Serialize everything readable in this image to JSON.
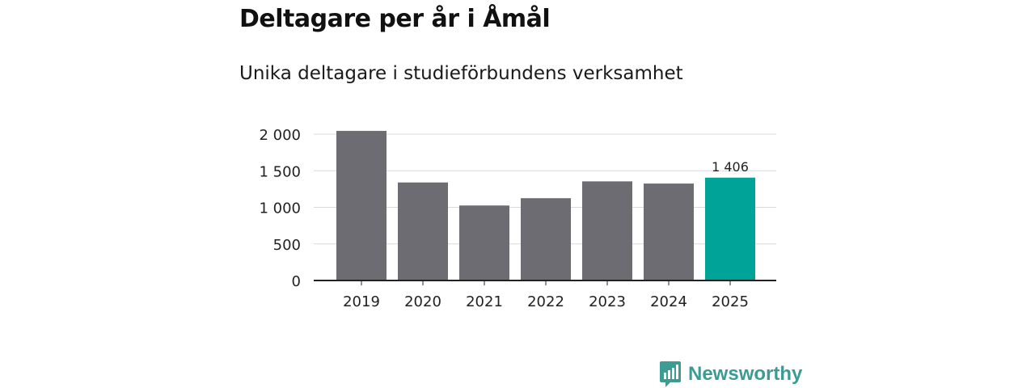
{
  "title": "Deltagare per år i Åmål",
  "subtitle": "Unika deltagare i studieförbundens verksamhet",
  "brand": {
    "name": "Newsworthy",
    "color": "#3d9b93",
    "icon": "bar-chart-speech-bubble-icon"
  },
  "colors": {
    "bar_default": "#6d6c72",
    "bar_highlight": "#00a397",
    "gridline": "#d9d9d9",
    "axis": "#222222"
  },
  "chart_data": {
    "type": "bar",
    "categories": [
      "2019",
      "2020",
      "2021",
      "2022",
      "2023",
      "2024",
      "2025"
    ],
    "values": [
      2045,
      1340,
      1025,
      1125,
      1355,
      1325,
      1406
    ],
    "highlight_index": 6,
    "data_labels": [
      {
        "index": 6,
        "text": "1 406"
      }
    ],
    "ylim": [
      0,
      2000
    ],
    "yticks": [
      0,
      500,
      1000,
      1500,
      2000
    ],
    "ytick_labels": [
      "0",
      "500",
      "1 000",
      "1 500",
      "2 000"
    ],
    "grid": true,
    "legend": "none",
    "xlabel": "",
    "ylabel": ""
  }
}
